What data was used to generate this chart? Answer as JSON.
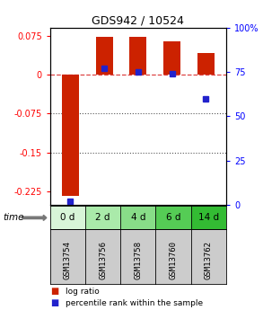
{
  "title": "GDS942 / 10524",
  "samples": [
    "GSM13754",
    "GSM13756",
    "GSM13758",
    "GSM13760",
    "GSM13762"
  ],
  "time_labels": [
    "0 d",
    "2 d",
    "4 d",
    "6 d",
    "14 d"
  ],
  "log_ratios": [
    -0.233,
    0.073,
    0.072,
    0.065,
    0.042
  ],
  "percentile_ranks": [
    2,
    77,
    75,
    74,
    60
  ],
  "ylim_left": [
    -0.25,
    0.09
  ],
  "ylim_right": [
    0,
    100
  ],
  "yticks_left": [
    0.075,
    0,
    -0.075,
    -0.15,
    -0.225
  ],
  "yticks_right": [
    100,
    75,
    50,
    25,
    0
  ],
  "bar_color": "#cc2200",
  "dot_color": "#2222cc",
  "zero_line_color": "#dd4444",
  "dotted_line_color": "#555555",
  "sample_bg": "#cccccc",
  "time_bg_colors": [
    "#d8f5d8",
    "#aaeaaa",
    "#88dd88",
    "#55cc55",
    "#33bb33"
  ],
  "bar_width": 0.5,
  "legend_bar_color": "#cc2200",
  "legend_dot_color": "#2222cc"
}
